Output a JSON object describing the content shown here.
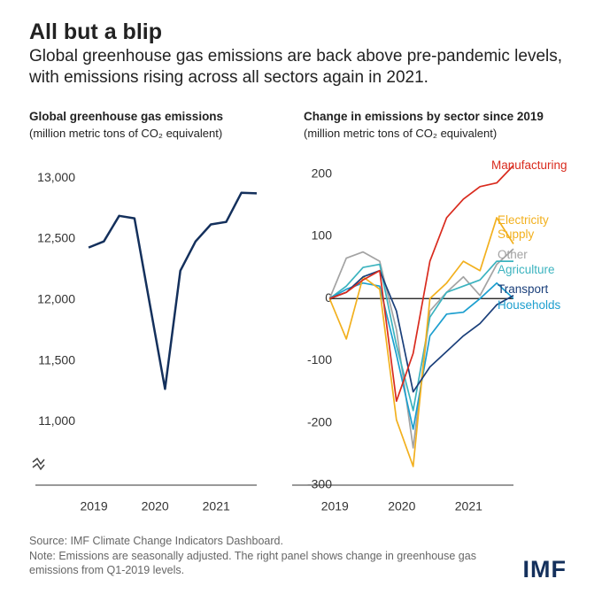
{
  "title": "All but a blip",
  "subtitle": "Global greenhouse gas emissions are back above pre-pandemic levels, with emissions rising across all sectors again in 2021.",
  "source": "Source: IMF Climate Change Indicators Dashboard.",
  "note": "Note: Emissions are seasonally adjusted. The right panel shows change in greenhouse gas emissions from Q1-2019 levels.",
  "logo": "IMF",
  "chart_data": [
    {
      "type": "line",
      "title": "Global greenhouse gas  emissions",
      "subtitle": "(million metric tons of CO₂ equivalent)",
      "x": [
        2019,
        2019.25,
        2019.5,
        2019.75,
        2020,
        2020.25,
        2020.5,
        2020.75,
        2021,
        2021.25,
        2021.5,
        2021.75
      ],
      "values": [
        12430,
        12480,
        12690,
        12670,
        11970,
        11270,
        12240,
        12480,
        12620,
        12640,
        12880,
        12875
      ],
      "color": "#14305c",
      "xlim": [
        2018.13,
        2021.75
      ],
      "xticks": [
        2019,
        2020,
        2021
      ],
      "ylim": [
        10480,
        13190
      ],
      "yticks": [
        {
          "value": 11000,
          "label": "11,000"
        },
        {
          "value": 11500,
          "label": "11,500"
        },
        {
          "value": 12000,
          "label": "12,000"
        },
        {
          "value": 12500,
          "label": "12,500"
        },
        {
          "value": 13000,
          "label": "13,000"
        }
      ]
    },
    {
      "type": "line",
      "title": "Change in emissions by sector since 2019",
      "subtitle": "(million metric tons of CO₂ equivalent)",
      "x": [
        2019,
        2019.25,
        2019.5,
        2019.75,
        2020,
        2020.25,
        2020.5,
        2020.75,
        2021,
        2021.25,
        2021.5,
        2021.75
      ],
      "series": [
        {
          "name": "Other",
          "color": "#a3a3a3",
          "values": [
            0,
            65,
            75,
            60,
            -50,
            -240,
            -20,
            10,
            35,
            5,
            55,
            80
          ]
        },
        {
          "name": "Agriculture",
          "color": "#3bb3bf",
          "values": [
            0,
            20,
            50,
            55,
            -75,
            -180,
            -30,
            10,
            20,
            30,
            60,
            60
          ]
        },
        {
          "name": "Households",
          "color": "#1d9fcf",
          "values": [
            0,
            15,
            25,
            20,
            -90,
            -210,
            -60,
            -25,
            -22,
            0,
            25,
            0
          ]
        },
        {
          "name": "Electricity Supply",
          "color": "#f2b01e",
          "values": [
            0,
            -65,
            35,
            15,
            -195,
            -270,
            0,
            25,
            60,
            45,
            130,
            88
          ]
        },
        {
          "name": "Transport",
          "color": "#1a3f7a",
          "values": [
            0,
            10,
            35,
            45,
            -20,
            -150,
            -110,
            -85,
            -60,
            -40,
            -10,
            5
          ]
        },
        {
          "name": "Manufacturing",
          "color": "#d92b1e",
          "values": [
            0,
            10,
            30,
            45,
            -165,
            -88,
            60,
            130,
            160,
            180,
            186,
            214
          ]
        }
      ],
      "xlim": [
        2018.44,
        2021.75
      ],
      "xticks": [
        2019,
        2020,
        2021
      ],
      "ylim": [
        -300,
        231
      ],
      "yticks": [
        -300,
        -200,
        -100,
        0,
        100,
        200
      ]
    }
  ]
}
